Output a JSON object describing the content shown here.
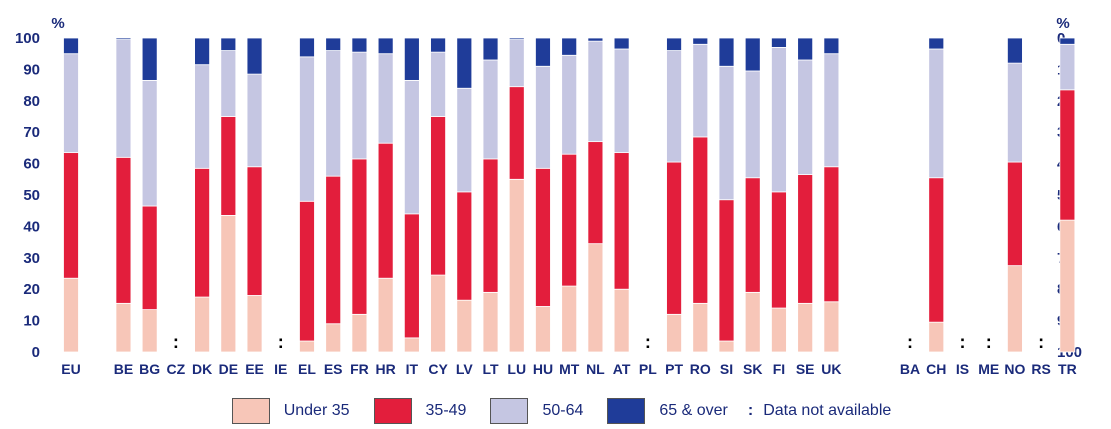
{
  "chart_data": {
    "type": "bar",
    "stacked": true,
    "left_unit": "%",
    "right_unit": "%",
    "y_ticks_left": [
      "0",
      "10",
      "20",
      "30",
      "40",
      "50",
      "60",
      "70",
      "80",
      "90",
      "100"
    ],
    "y_ticks_right": [
      "100",
      "90",
      "80",
      "70",
      "60",
      "50",
      "40",
      "30",
      "20",
      "10",
      "0"
    ],
    "ylim": [
      0,
      100
    ],
    "categories": [
      "EU",
      "",
      "BE",
      "BG",
      "CZ",
      "DK",
      "DE",
      "EE",
      "IE",
      "EL",
      "ES",
      "FR",
      "HR",
      "IT",
      "CY",
      "LV",
      "LT",
      "LU",
      "HU",
      "MT",
      "NL",
      "AT",
      "PL",
      "PT",
      "RO",
      "SI",
      "SK",
      "FI",
      "SE",
      "UK",
      "",
      "",
      "BA",
      "CH",
      "IS",
      "ME",
      "NO",
      "RS",
      "TR"
    ],
    "not_available_marker": ":",
    "series": [
      {
        "name": "Under 35",
        "color": "#f7c6b8",
        "values": [
          23.5,
          null,
          15.5,
          13.5,
          null,
          17.5,
          43.5,
          18,
          null,
          3.5,
          9,
          12,
          23.5,
          4.5,
          24.5,
          16.5,
          19,
          55,
          14.5,
          21,
          34.5,
          20,
          null,
          12,
          15.5,
          3.5,
          19,
          14,
          15.5,
          16,
          null,
          null,
          null,
          9.5,
          null,
          null,
          27.5,
          null,
          42
        ]
      },
      {
        "name": "35-49",
        "color": "#e31e3c",
        "values": [
          40,
          null,
          46.5,
          33,
          null,
          41,
          31.5,
          41,
          null,
          44.5,
          47,
          49.5,
          43,
          39.5,
          50.5,
          34.5,
          42.5,
          29.5,
          44,
          42,
          32.5,
          43.5,
          null,
          48.5,
          53,
          45,
          36.5,
          37,
          41,
          43,
          null,
          null,
          null,
          46,
          null,
          null,
          33,
          null,
          41.5
        ]
      },
      {
        "name": "50-64",
        "color": "#c5c6e2",
        "values": [
          31.5,
          null,
          37.5,
          40,
          null,
          33,
          21,
          29.5,
          null,
          46,
          40,
          34,
          28.5,
          42.5,
          20.5,
          33,
          31.5,
          15,
          32.5,
          31.5,
          32,
          33,
          null,
          35.5,
          29.5,
          42.5,
          34,
          46,
          36.5,
          36,
          null,
          null,
          null,
          41,
          null,
          null,
          31.5,
          null,
          14.5
        ]
      },
      {
        "name": "65 & over",
        "color": "#1f3c99",
        "values": [
          5,
          null,
          0.5,
          13.5,
          null,
          8.5,
          4,
          11.5,
          null,
          6,
          4,
          4.5,
          5,
          13.5,
          4.5,
          16,
          7,
          0.5,
          9,
          5.5,
          1,
          3.5,
          null,
          4,
          2,
          9,
          10.5,
          3,
          7,
          5,
          null,
          null,
          null,
          3.5,
          null,
          null,
          8,
          null,
          2
        ]
      }
    ],
    "legend_na_text": "Data not available",
    "legend_placement": "bottom-center"
  }
}
